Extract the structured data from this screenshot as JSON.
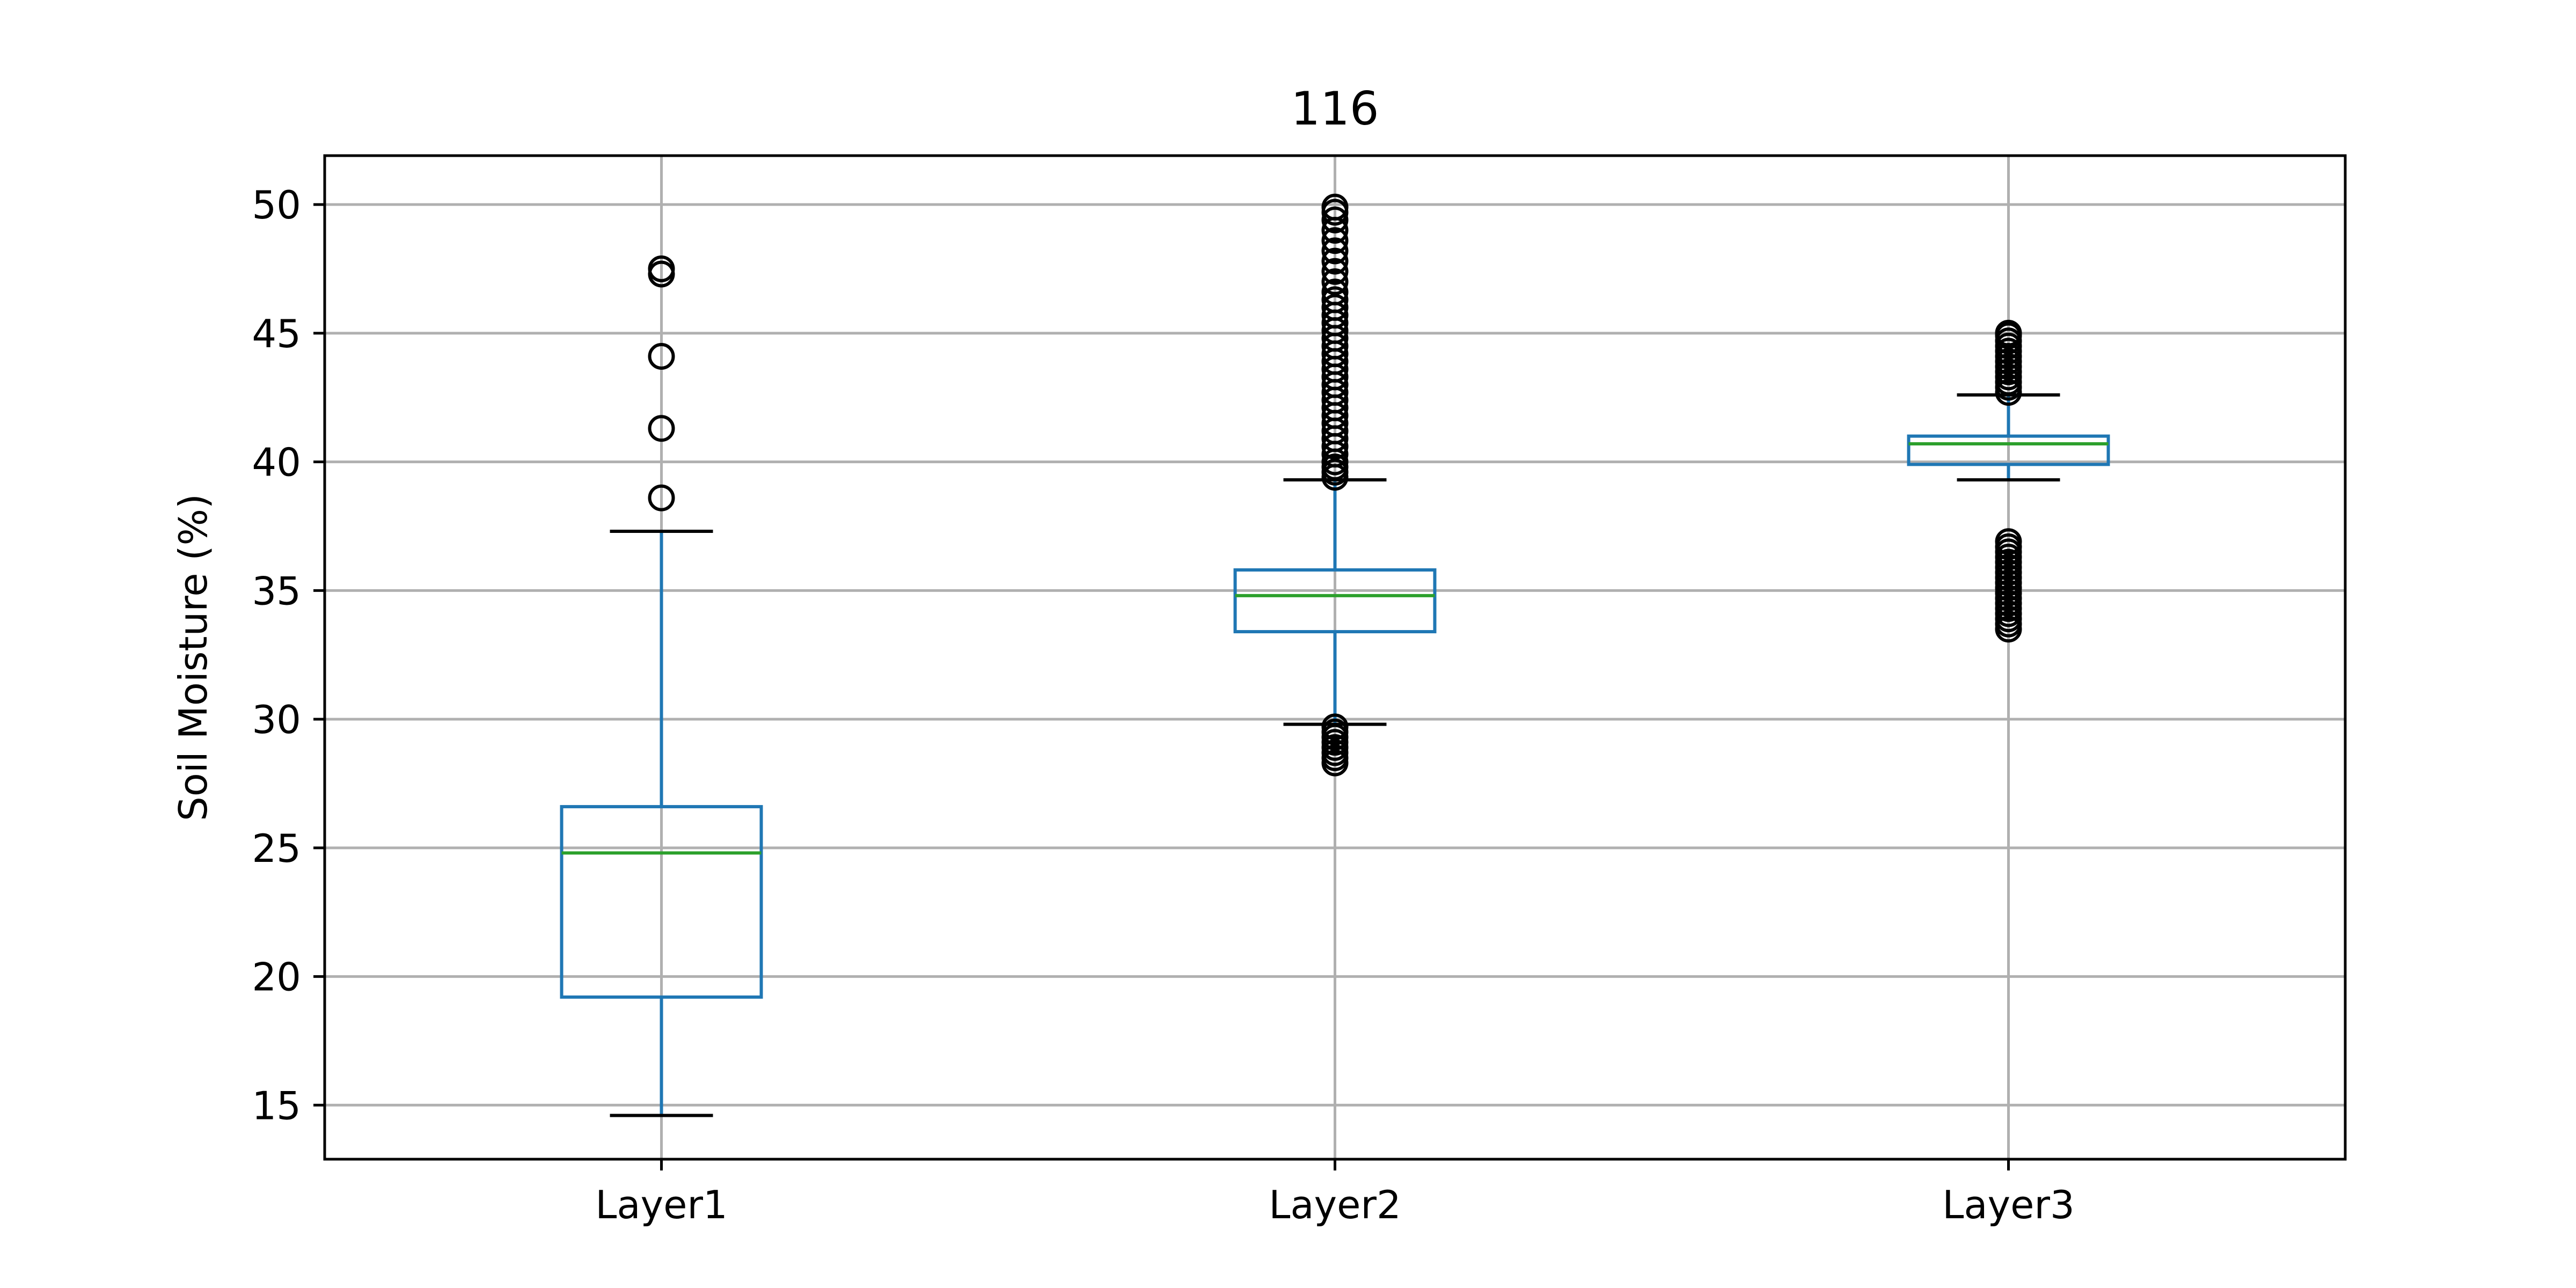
{
  "chart_data": {
    "type": "box",
    "title": "116",
    "xlabel": "",
    "ylabel": "Soil Moisture (%)",
    "ylim": [
      12.9,
      51.9
    ],
    "yticks": [
      15,
      20,
      25,
      30,
      35,
      40,
      45,
      50
    ],
    "grid": true,
    "categories": [
      "Layer1",
      "Layer2",
      "Layer3"
    ],
    "boxes": [
      {
        "name": "Layer1",
        "whisker_low": 14.6,
        "q1": 19.2,
        "median": 24.8,
        "q3": 26.6,
        "whisker_high": 37.3,
        "outliers": [
          38.6,
          41.3,
          44.1,
          47.3,
          47.5
        ]
      },
      {
        "name": "Layer2",
        "whisker_low": 29.8,
        "q1": 33.4,
        "median": 34.8,
        "q3": 35.8,
        "whisker_high": 39.3,
        "outliers": [
          28.3,
          28.5,
          28.7,
          28.9,
          29.1,
          29.3,
          29.5,
          29.7,
          39.4,
          39.6,
          39.8,
          40.0,
          40.3,
          40.6,
          40.9,
          41.2,
          41.5,
          41.8,
          42.1,
          42.4,
          42.7,
          43.0,
          43.3,
          43.6,
          43.9,
          44.2,
          44.5,
          44.8,
          45.1,
          45.4,
          45.7,
          46.0,
          46.3,
          46.6,
          47.0,
          47.4,
          47.8,
          48.2,
          48.6,
          49.0,
          49.4,
          49.7,
          49.9
        ]
      },
      {
        "name": "Layer3",
        "whisker_low": 39.3,
        "q1": 39.9,
        "median": 40.7,
        "q3": 41.0,
        "whisker_high": 42.6,
        "outliers": [
          33.5,
          33.7,
          33.9,
          34.1,
          34.3,
          34.5,
          34.7,
          34.9,
          35.1,
          35.3,
          35.5,
          35.7,
          35.9,
          36.1,
          36.3,
          36.5,
          36.7,
          36.9,
          42.7,
          42.9,
          43.1,
          43.3,
          43.5,
          43.7,
          43.9,
          44.1,
          44.3,
          44.5,
          44.7,
          44.9,
          45.0
        ]
      }
    ],
    "colors": {
      "box": "#1f77b4",
      "median": "#2ca02c",
      "whisker_cap": "#000000",
      "outlier": "#000000",
      "grid": "#b0b0b0"
    }
  }
}
